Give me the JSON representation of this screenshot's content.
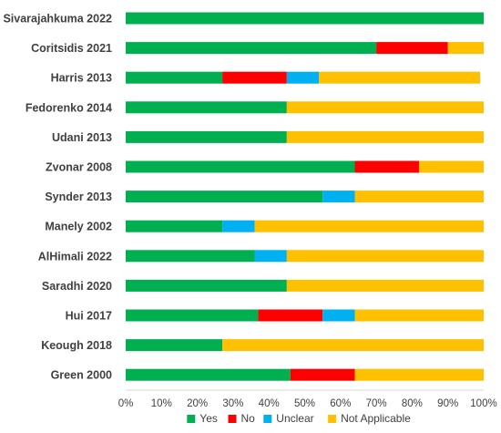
{
  "chart_data": {
    "type": "bar",
    "orientation": "horizontal",
    "stacked": true,
    "categories": [
      "Sivarajahkuma 2022",
      "Coritsidis 2021",
      "Harris 2013",
      "Fedorenko 2014",
      "Udani 2013",
      "Zvonar 2008",
      "Synder 2013",
      "Manely 2002",
      "AlHimali 2022",
      "Saradhi 2020",
      "Hui 2017",
      "Keough 2018",
      "Green 2000"
    ],
    "series": [
      {
        "name": "Yes",
        "color": "#00B050",
        "values": [
          100,
          70,
          27,
          45,
          45,
          64,
          55,
          27,
          36,
          45,
          37,
          27,
          46
        ]
      },
      {
        "name": "No",
        "color": "#FF0000",
        "values": [
          0,
          20,
          18,
          0,
          0,
          18,
          0,
          0,
          0,
          0,
          18,
          0,
          18
        ]
      },
      {
        "name": "Unclear",
        "color": "#00B0F0",
        "values": [
          0,
          0,
          9,
          0,
          0,
          0,
          9,
          9,
          9,
          0,
          9,
          0,
          0
        ]
      },
      {
        "name": "Not Applicable",
        "color": "#FFC000",
        "values": [
          0,
          10,
          45,
          55,
          55,
          18,
          36,
          64,
          55,
          55,
          36,
          73,
          36
        ]
      }
    ],
    "xlim": [
      0,
      100
    ],
    "x_ticks": [
      "0%",
      "10%",
      "20%",
      "30%",
      "40%",
      "50%",
      "60%",
      "70%",
      "80%",
      "90%",
      "100%"
    ],
    "grid": false,
    "legend_position": "bottom"
  }
}
